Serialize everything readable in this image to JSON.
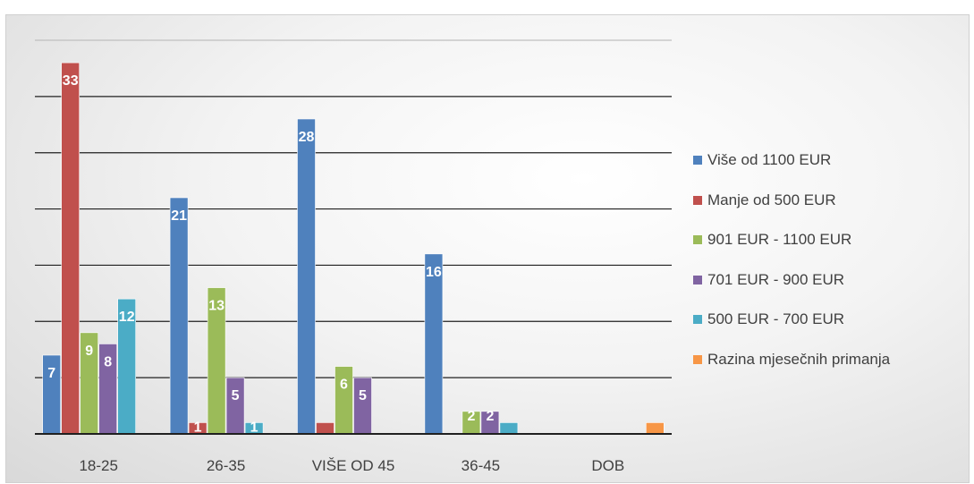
{
  "chart_data": {
    "type": "bar",
    "categories": [
      "18-25",
      "26-35",
      "VIŠE OD 45",
      "36-45",
      "DOB"
    ],
    "series": [
      {
        "name": "Više od 1100 EUR",
        "color": "#4F81BD",
        "values": [
          7,
          21,
          28,
          16,
          null
        ]
      },
      {
        "name": "Manje od 500 EUR",
        "color": "#C0504D",
        "values": [
          33,
          1,
          1,
          null,
          null
        ]
      },
      {
        "name": "901 EUR - 1100 EUR",
        "color": "#9BBB59",
        "values": [
          9,
          13,
          6,
          2,
          null
        ]
      },
      {
        "name": "701 EUR - 900 EUR",
        "color": "#8064A2",
        "values": [
          8,
          5,
          5,
          2,
          null
        ]
      },
      {
        "name": "500 EUR - 700 EUR",
        "color": "#4BACC6",
        "values": [
          12,
          1,
          null,
          1,
          null
        ]
      },
      {
        "name": "Razina mjesečnih primanja",
        "color": "#F79646",
        "values": [
          null,
          null,
          null,
          null,
          1
        ]
      }
    ],
    "data_labels": [
      [
        "7",
        "21",
        "28",
        "16",
        ""
      ],
      [
        "33",
        "1",
        "",
        "",
        ""
      ],
      [
        "9",
        "13",
        "6",
        "2",
        ""
      ],
      [
        "8",
        "5",
        "5",
        "2",
        ""
      ],
      [
        "12",
        "1",
        "",
        "",
        ""
      ],
      [
        "",
        "",
        "",
        "",
        ""
      ]
    ],
    "title": "",
    "xlabel": "",
    "ylabel": "",
    "ylim": [
      0,
      35
    ],
    "y_gridline_step": 5,
    "grid": true,
    "legend_position": "right"
  }
}
